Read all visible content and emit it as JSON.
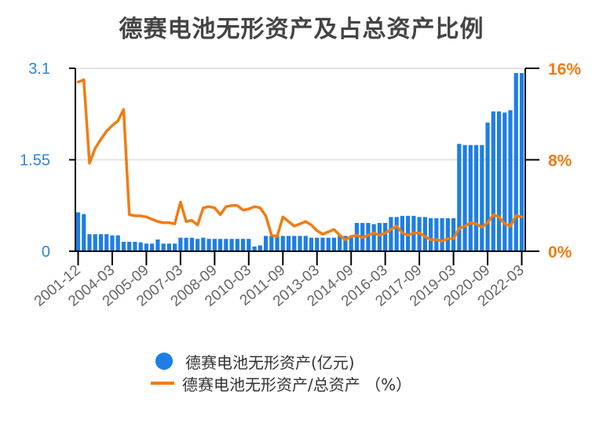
{
  "title": "德赛电池无形资产及占总资产比例",
  "colors": {
    "bar": "#1e7ee4",
    "line": "#f07c14",
    "left_axis_text": "#2e86de",
    "right_axis_text": "#f07c14",
    "grid": "#e3e3e3"
  },
  "legend": {
    "bar_label": "德赛电池无形资产(亿元)",
    "line_label": "德赛电池无形资产/总资产 （%）"
  },
  "chart_data": {
    "type": "bar+line",
    "title": "德赛电池无形资产及占总资产比例",
    "left_axis": {
      "ticks": [
        "0",
        "1.55",
        "3.1"
      ],
      "ylim": [
        0,
        3.1
      ],
      "label": "德赛电池无形资产(亿元)"
    },
    "right_axis": {
      "ticks": [
        "0%",
        "8%",
        "16%"
      ],
      "ylim": [
        0,
        16
      ],
      "label": "%"
    },
    "x_tick_labels": [
      "2001-12",
      "2004-03",
      "2005-09",
      "2007-03",
      "2008-09",
      "2010-03",
      "2011-09",
      "2013-03",
      "2014-09",
      "2016-03",
      "2017-09",
      "2019-03",
      "2020-09",
      "2022-03"
    ],
    "x_tick_indices": [
      0,
      6,
      12,
      18,
      24,
      30,
      36,
      42,
      48,
      54,
      60,
      66,
      72,
      78
    ],
    "grid": true,
    "legend_position": "bottom",
    "series": [
      {
        "name": "德赛电池无形资产(亿元)",
        "type": "bar",
        "values": [
          0.66,
          0.63,
          0.29,
          0.29,
          0.29,
          0.29,
          0.27,
          0.27,
          0.16,
          0.16,
          0.16,
          0.15,
          0.13,
          0.13,
          0.2,
          0.13,
          0.13,
          0.13,
          0.23,
          0.23,
          0.23,
          0.21,
          0.23,
          0.21,
          0.21,
          0.21,
          0.21,
          0.21,
          0.21,
          0.21,
          0.21,
          0.08,
          0.1,
          0.26,
          0.26,
          0.26,
          0.26,
          0.26,
          0.26,
          0.26,
          0.26,
          0.23,
          0.23,
          0.23,
          0.23,
          0.23,
          0.26,
          0.26,
          0.23,
          0.48,
          0.48,
          0.48,
          0.46,
          0.48,
          0.48,
          0.58,
          0.58,
          0.6,
          0.6,
          0.6,
          0.58,
          0.58,
          0.56,
          0.56,
          0.56,
          0.56,
          0.56,
          1.82,
          1.8,
          1.8,
          1.8,
          1.8,
          2.18,
          2.37,
          2.37,
          2.35,
          2.39,
          3.02,
          3.02
        ]
      },
      {
        "name": "德赛电池无形资产/总资产（%）",
        "type": "line",
        "values": [
          14.8,
          15.0,
          7.7,
          9.0,
          9.8,
          10.5,
          11.0,
          11.4,
          12.4,
          3.2,
          3.1,
          3.1,
          3.0,
          2.8,
          2.6,
          2.5,
          2.5,
          2.4,
          4.3,
          2.6,
          2.7,
          2.3,
          3.8,
          3.9,
          3.8,
          3.2,
          3.9,
          4.0,
          4.0,
          3.6,
          3.7,
          3.9,
          3.8,
          3.1,
          1.4,
          1.3,
          3.0,
          2.6,
          2.2,
          2.4,
          2.6,
          2.3,
          1.8,
          1.5,
          1.7,
          1.9,
          1.4,
          1.0,
          1.3,
          1.4,
          1.2,
          1.4,
          1.6,
          1.4,
          1.6,
          1.9,
          2.2,
          1.6,
          1.4,
          1.6,
          1.6,
          1.3,
          1.0,
          1.0,
          0.9,
          1.1,
          1.1,
          2.0,
          2.2,
          2.5,
          2.4,
          2.1,
          2.5,
          3.2,
          3.0,
          2.4,
          2.2,
          3.1,
          3.0
        ]
      }
    ]
  }
}
